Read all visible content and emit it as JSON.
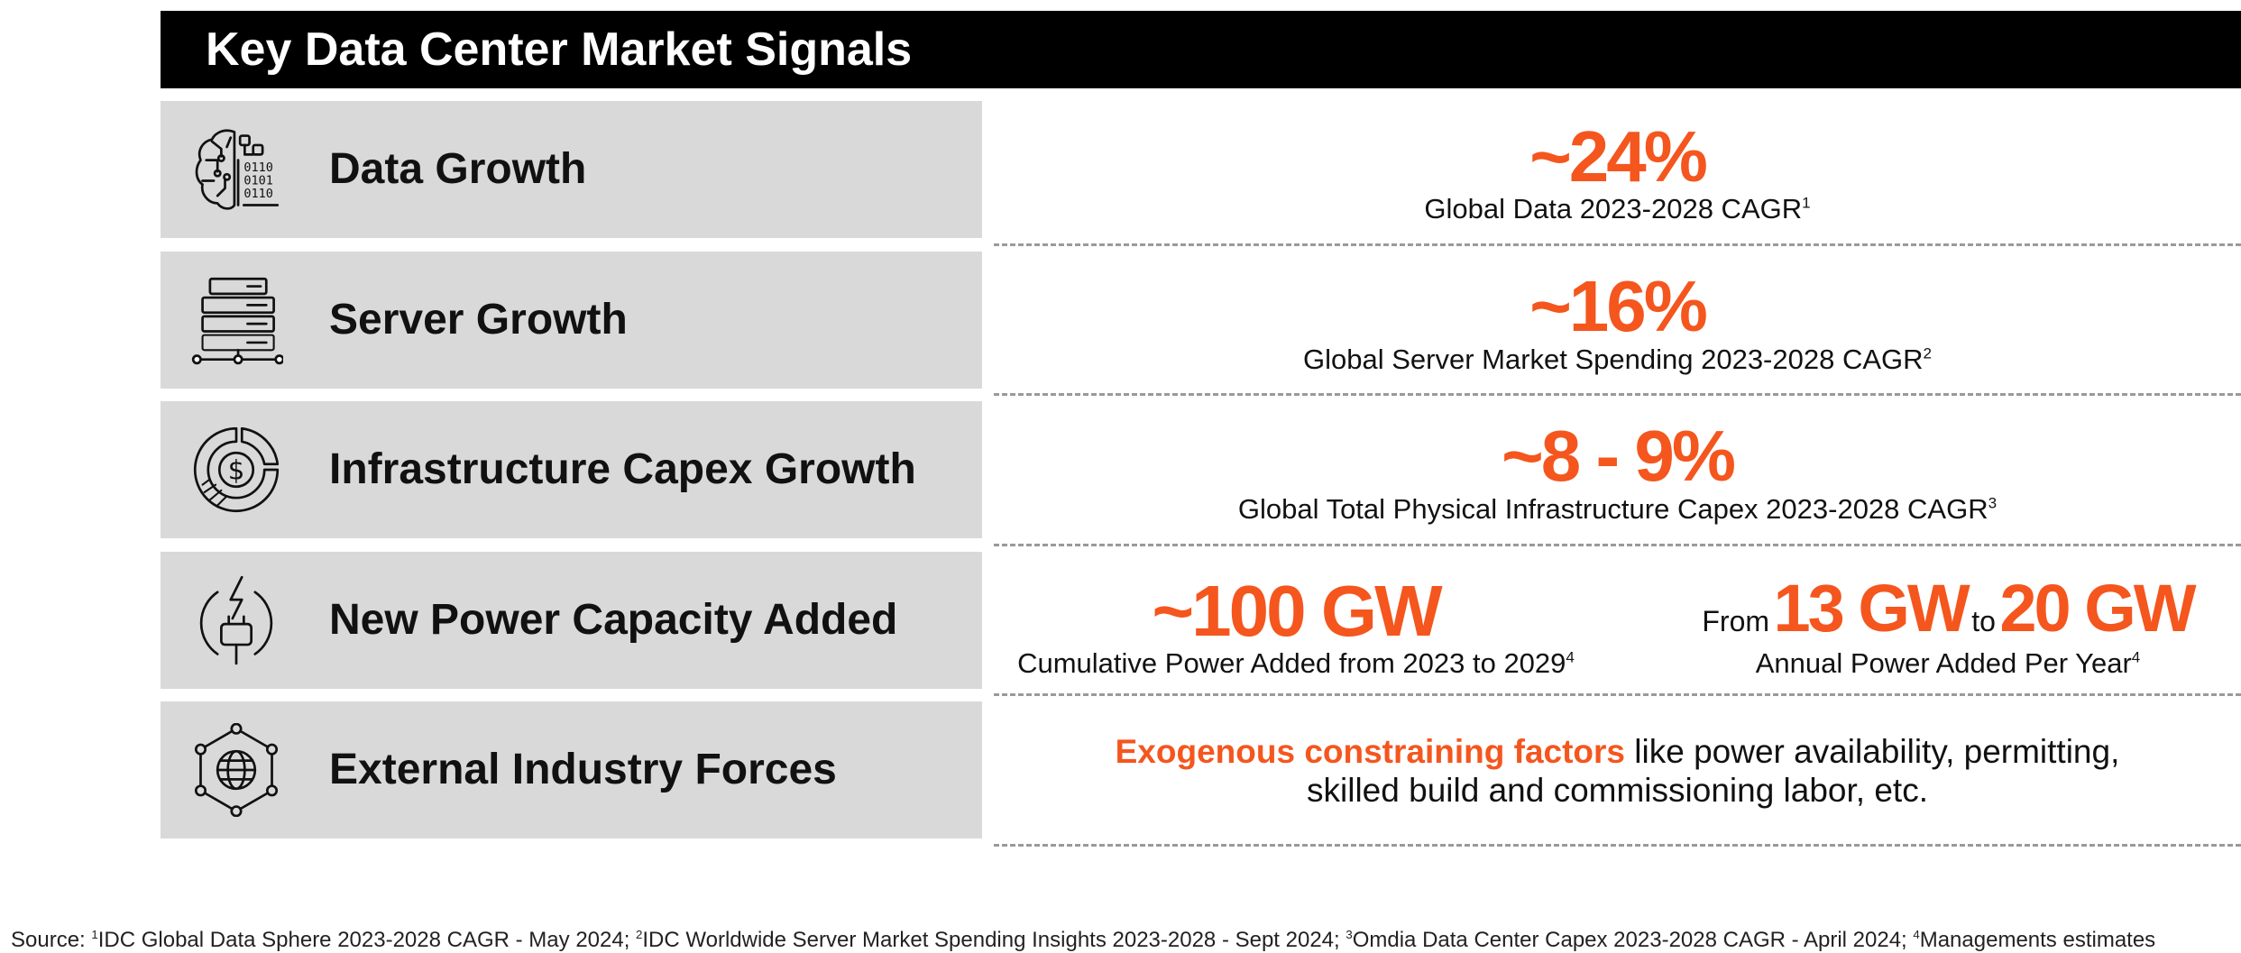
{
  "title": "Key Data Center Market Signals",
  "colors": {
    "accent": "#f4561e",
    "banner": "#000000",
    "label_bg": "#d9d9d9"
  },
  "rows": [
    {
      "label": "Data Growth",
      "icon": "brain-binary-icon",
      "value": "~24%",
      "caption": "Global Data 2023-2028 CAGR",
      "note": "1"
    },
    {
      "label": "Server Growth",
      "icon": "server-network-icon",
      "value": "~16%",
      "caption": "Global Server Market Spending 2023-2028 CAGR",
      "note": "2"
    },
    {
      "label": "Infrastructure Capex Growth",
      "icon": "dollar-chart-icon",
      "value": "~8 - 9%",
      "caption": "Global Total Physical Infrastructure Capex 2023-2028 CAGR",
      "note": "3"
    },
    {
      "label": "New Power Capacity Added",
      "icon": "power-plug-icon",
      "left_value": "~100 GW",
      "left_caption": "Cumulative Power Added from 2023 to 2029",
      "left_note": "4",
      "range_from": "From",
      "range_low": "13 GW",
      "range_to": "to",
      "range_high": "20 GW",
      "right_caption": "Annual Power Added Per Year",
      "right_note": "4"
    },
    {
      "label": "External Industry Forces",
      "icon": "globe-network-icon",
      "highlight": "Exogenous constraining factors",
      "text_1": " like power availability, permitting,",
      "text_2": "skilled build and commissioning labor, etc."
    }
  ],
  "footnote": {
    "prefix": "Source: ",
    "items": [
      {
        "n": "1",
        "text": "IDC Global Data Sphere 2023-2028 CAGR - May 2024; "
      },
      {
        "n": "2",
        "text": "IDC Worldwide Server Market Spending Insights 2023-2028 - Sept 2024; "
      },
      {
        "n": "3",
        "text": "Omdia Data Center Capex 2023-2028 CAGR - April 2024; "
      },
      {
        "n": "4",
        "text": "Managements estimates"
      }
    ]
  }
}
